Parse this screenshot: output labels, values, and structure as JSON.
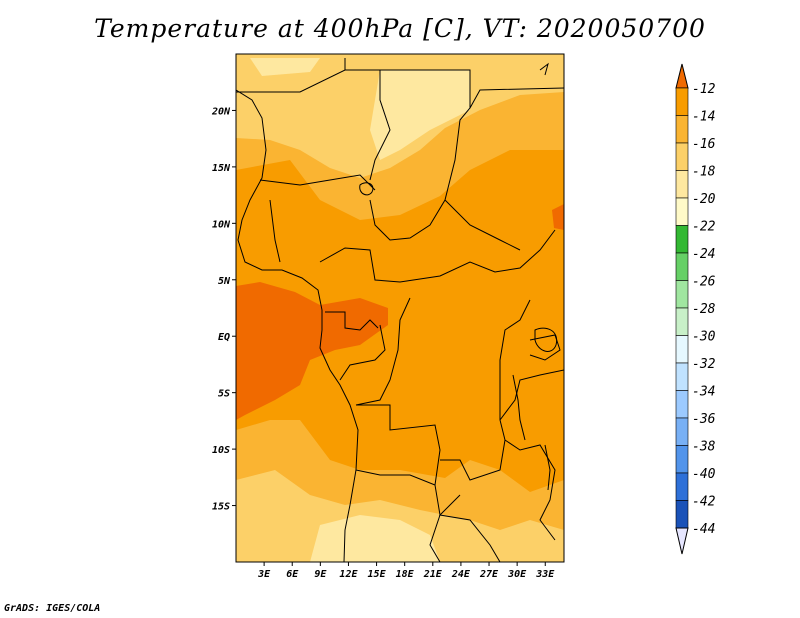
{
  "title": "Temperature at 400hPa [C], VT: 2020050700",
  "credit": "GrADS: IGES/COLA",
  "map": {
    "lon_range": [
      0,
      35
    ],
    "lat_range": [
      -20,
      25
    ],
    "lon_ticks": [
      {
        "value": 3,
        "label": "3E"
      },
      {
        "value": 6,
        "label": "6E"
      },
      {
        "value": 9,
        "label": "9E"
      },
      {
        "value": 12,
        "label": "12E"
      },
      {
        "value": 15,
        "label": "15E"
      },
      {
        "value": 18,
        "label": "18E"
      },
      {
        "value": 21,
        "label": "21E"
      },
      {
        "value": 24,
        "label": "24E"
      },
      {
        "value": 27,
        "label": "27E"
      },
      {
        "value": 30,
        "label": "30E"
      },
      {
        "value": 33,
        "label": "33E"
      }
    ],
    "lat_ticks": [
      {
        "value": 20,
        "label": "20N"
      },
      {
        "value": 15,
        "label": "15N"
      },
      {
        "value": 10,
        "label": "10N"
      },
      {
        "value": 5,
        "label": "5N"
      },
      {
        "value": 0,
        "label": "EQ"
      },
      {
        "value": -5,
        "label": "5S"
      },
      {
        "value": -10,
        "label": "10S"
      },
      {
        "value": -15,
        "label": "15S"
      }
    ]
  },
  "colorbar": {
    "levels": [
      "-12",
      "-14",
      "-16",
      "-18",
      "-20",
      "-22",
      "-24",
      "-26",
      "-28",
      "-30",
      "-32",
      "-34",
      "-36",
      "-38",
      "-40",
      "-42",
      "-44"
    ],
    "colors": [
      "#f06a00",
      "#f89c00",
      "#fab432",
      "#fcd068",
      "#fee8a0",
      "#fffac8",
      "#33b833",
      "#66d066",
      "#a0e6a0",
      "#c8f0c8",
      "#e6f8ff",
      "#c0e2ff",
      "#9ccaff",
      "#78b0f5",
      "#5294eb",
      "#2e70d8",
      "#1a52b8",
      "#0e2e8c"
    ],
    "over_color": "#f06a00",
    "under_color": "#e6e6ff"
  }
}
